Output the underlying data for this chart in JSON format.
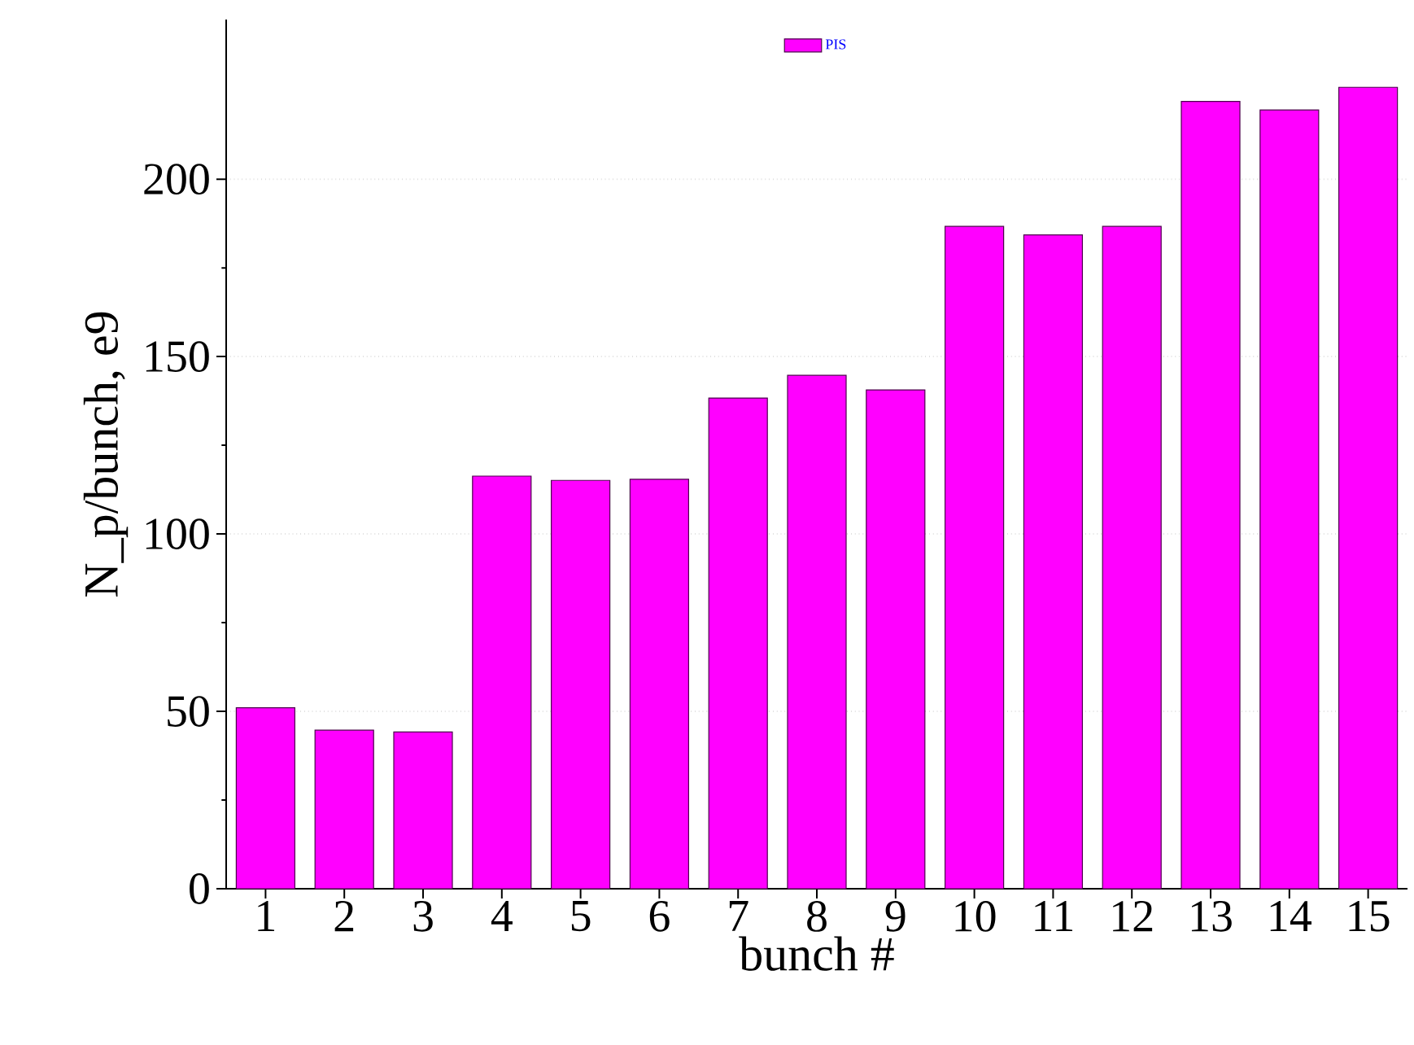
{
  "chart_data": {
    "type": "bar",
    "xlabel": "bunch #",
    "ylabel": "N_p/bunch, e9",
    "categories": [
      "1",
      "2",
      "3",
      "4",
      "5",
      "6",
      "7",
      "8",
      "9",
      "10",
      "11",
      "12",
      "13",
      "14",
      "15"
    ],
    "series": [
      {
        "name": "PIS",
        "color": "#ff00ff",
        "values": [
          51,
          44.7,
          44.2,
          116.3,
          115.1,
          115.4,
          138.3,
          144.7,
          140.6,
          186.7,
          184.3,
          186.7,
          221.9,
          219.5,
          225.9
        ]
      }
    ],
    "ylim": [
      0,
      245
    ],
    "yticks": [
      0,
      50,
      100,
      150,
      200
    ],
    "grid": "y",
    "legend": "top"
  }
}
